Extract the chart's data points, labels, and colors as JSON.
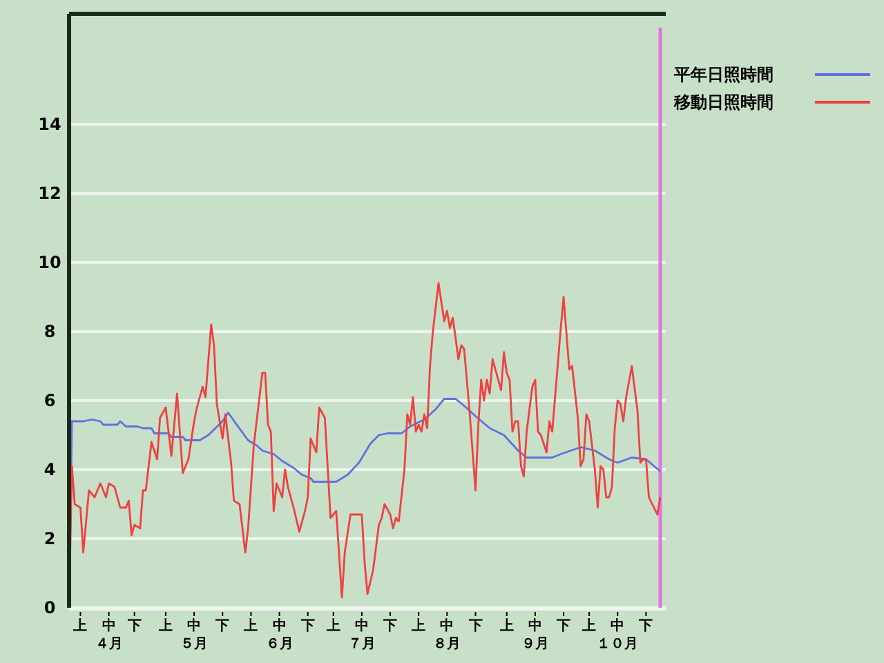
{
  "chart_data": {
    "type": "line",
    "ylim": [
      0,
      17.2
    ],
    "yticks": [
      0,
      2,
      4,
      6,
      8,
      10,
      12,
      14
    ],
    "categories": [
      null,
      null,
      null,
      null,
      "上",
      null,
      null,
      null,
      null,
      null,
      null,
      null,
      null,
      null,
      "中４月",
      null,
      null,
      null,
      null,
      null,
      null,
      null,
      null,
      "下",
      null,
      null,
      null,
      null,
      null,
      null,
      null,
      null,
      null,
      null,
      "上",
      null,
      null,
      null,
      null,
      null,
      null,
      null,
      null,
      null,
      "中５月",
      null,
      null,
      null,
      null,
      null,
      null,
      null,
      null,
      null,
      "下",
      null,
      null,
      null,
      null,
      null,
      null,
      null,
      null,
      null,
      "上",
      null,
      null,
      null,
      null,
      null,
      null,
      null,
      null,
      null,
      "中６月",
      null,
      null,
      null,
      null,
      null,
      null,
      null,
      null,
      null,
      "下",
      null,
      null,
      null,
      null,
      null,
      null,
      null,
      null,
      "上",
      null,
      null,
      null,
      null,
      null,
      null,
      null,
      null,
      null,
      "中７月",
      null,
      null,
      null,
      null,
      null,
      null,
      null,
      null,
      null,
      "下",
      null,
      null,
      null,
      null,
      null,
      null,
      null,
      null,
      null,
      "上",
      null,
      null,
      null,
      null,
      null,
      null,
      null,
      null,
      null,
      "中８月",
      null,
      null,
      null,
      null,
      null,
      null,
      null,
      null,
      null,
      "下",
      null,
      null,
      null,
      null,
      null,
      null,
      null,
      null,
      null,
      null,
      "上",
      null,
      null,
      null,
      null,
      null,
      null,
      null,
      null,
      null,
      "中９月",
      null,
      null,
      null,
      null,
      null,
      null,
      null,
      null,
      null,
      "下",
      null,
      null,
      null,
      null,
      null,
      null,
      null,
      null,
      "上",
      null,
      null,
      null,
      null,
      null,
      null,
      null,
      null,
      null,
      "中１０月",
      null,
      null,
      null,
      null,
      null,
      null,
      null,
      null,
      null,
      "下",
      null,
      null,
      null,
      null,
      null
    ],
    "grid": "y",
    "legend": "top right",
    "marker": "none",
    "line_style": "solid",
    "series": [
      {
        "name": "平年日照時間",
        "color": "#6070e0",
        "values": [
          0,
          5.4,
          null,
          null,
          null,
          5.4,
          null,
          null,
          5.45,
          null,
          null,
          5.4,
          5.3,
          null,
          null,
          null,
          null,
          5.3,
          5.4,
          null,
          5.25,
          null,
          null,
          null,
          5.25,
          null,
          5.2,
          null,
          null,
          5.2,
          5.05,
          null,
          null,
          null,
          null,
          5.05,
          4.95,
          null,
          null,
          null,
          4.95,
          4.85,
          null,
          null,
          null,
          null,
          4.85,
          null,
          null,
          5.0,
          null,
          null,
          null,
          null,
          5.4,
          null,
          5.65,
          null,
          null,
          5.3,
          null,
          null,
          null,
          4.85,
          null,
          null,
          4.7,
          null,
          4.55,
          null,
          null,
          null,
          4.45,
          null,
          null,
          4.25,
          null,
          null,
          null,
          4.05,
          null,
          null,
          3.85,
          null,
          null,
          3.75,
          3.65,
          null,
          null,
          null,
          null,
          null,
          null,
          null,
          3.65,
          3.7,
          null,
          null,
          3.85,
          null,
          null,
          null,
          4.2,
          null,
          null,
          null,
          4.75,
          null,
          null,
          5.0,
          null,
          null,
          5.05,
          null,
          null,
          null,
          null,
          5.05,
          null,
          null,
          5.25,
          null,
          null,
          null,
          null,
          5.45,
          null,
          null,
          null,
          5.75,
          null,
          null,
          6.05,
          null,
          null,
          null,
          6.05,
          null,
          null,
          5.85,
          null,
          null,
          null,
          5.55,
          null,
          null,
          null,
          null,
          5.2,
          null,
          null,
          null,
          null,
          5.0,
          null,
          null,
          null,
          null,
          4.55,
          null,
          null,
          4.35,
          null,
          null,
          null,
          null,
          null,
          null,
          null,
          null,
          4.35,
          null,
          null,
          4.45,
          null,
          null,
          null,
          null,
          null,
          null,
          4.65,
          null,
          null,
          null,
          null,
          4.55,
          null,
          null,
          null,
          null,
          4.3,
          null,
          null,
          4.2,
          null,
          null,
          null,
          null,
          4.35,
          null,
          null,
          null,
          null,
          4.3,
          null,
          null,
          null,
          null,
          3.95
        ]
      },
      {
        "name": "移動日照時間",
        "color": "#f04040",
        "values": [
          0,
          4.1,
          3.0,
          null,
          2.9,
          1.6,
          null,
          3.4,
          null,
          3.2,
          null,
          3.6,
          null,
          3.2,
          3.6,
          null,
          3.5,
          null,
          2.9,
          null,
          2.9,
          3.1,
          2.1,
          2.4,
          null,
          2.3,
          3.4,
          3.4,
          null,
          4.8,
          null,
          4.3,
          5.5,
          null,
          5.8,
          null,
          4.4,
          null,
          6.2,
          null,
          3.9,
          null,
          4.3,
          null,
          5.4,
          5.8,
          null,
          6.4,
          6.1,
          null,
          8.2,
          7.6,
          5.9,
          null,
          4.9,
          5.6,
          null,
          4.2,
          3.1,
          null,
          3.0,
          null,
          1.6,
          2.3,
          null,
          4.7,
          null,
          null,
          6.8,
          6.8,
          5.3,
          5.1,
          2.8,
          3.6,
          null,
          3.2,
          4.0,
          3.5,
          null,
          2.9,
          null,
          2.2,
          null,
          2.8,
          3.2,
          4.9,
          null,
          4.5,
          5.8,
          null,
          5.5,
          null,
          2.6,
          null,
          2.8,
          null,
          0.3,
          1.6,
          null,
          2.7,
          null,
          null,
          null,
          2.7,
          1.3,
          0.4,
          null,
          1.1,
          null,
          2.4,
          2.6,
          3.0,
          null,
          2.7,
          2.3,
          2.6,
          2.5,
          null,
          4.0,
          5.6,
          5.3,
          6.1,
          5.1,
          5.3,
          5.1,
          5.6,
          5.2,
          7.0,
          8.0,
          null,
          9.4,
          null,
          8.3,
          8.6,
          8.1,
          8.4,
          null,
          7.2,
          7.6,
          7.5,
          null,
          5.6,
          null,
          3.4,
          5.3,
          6.6,
          6.0,
          6.6,
          6.2,
          7.2,
          null,
          6.6,
          6.3,
          7.4,
          6.8,
          6.6,
          5.1,
          5.4,
          5.4,
          4.1,
          3.8,
          5.1,
          null,
          6.4,
          6.6,
          5.1,
          5.0,
          null,
          4.5,
          5.4,
          5.1,
          null,
          null,
          8.1,
          9.0,
          null,
          6.9,
          7.0,
          null,
          5.5,
          4.1,
          4.3,
          5.6,
          5.4,
          null,
          4.0,
          2.9,
          4.1,
          4.0,
          3.2,
          3.2,
          3.5,
          5.2,
          6.0,
          5.9,
          5.4,
          6.1,
          null,
          7.0,
          null,
          5.7,
          4.2,
          4.3,
          4.3,
          3.2,
          null,
          null,
          2.7,
          3.2
        ]
      }
    ]
  }
}
